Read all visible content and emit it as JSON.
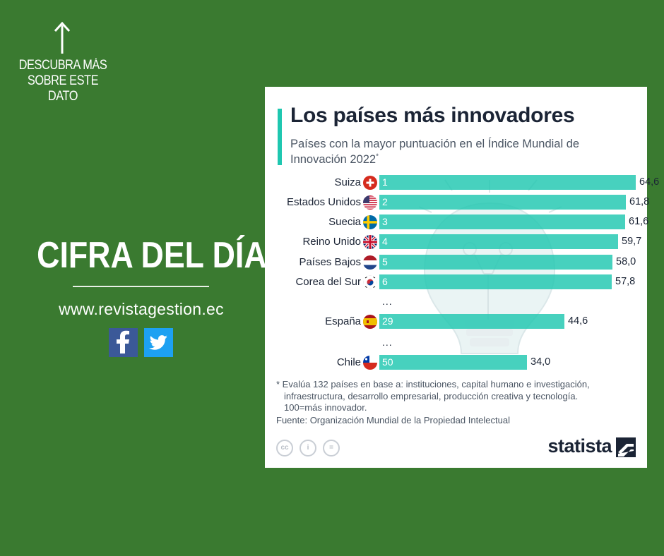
{
  "promo": {
    "lines": [
      "DESCUBRA MÁS",
      "SOBRE ESTE",
      "DATO"
    ],
    "icon": "arrow-up-icon"
  },
  "headline": "CIFRA DEL DÍA",
  "website": "www.revistagestion.ec",
  "social": [
    "facebook-icon",
    "twitter-icon"
  ],
  "colors": {
    "background": "#3a7a30",
    "bar": "#1fc7b0",
    "text_dark": "#1b2435"
  },
  "chart_data": {
    "type": "bar",
    "orientation": "horizontal",
    "title": "Los países más innovadores",
    "subtitle": "Países con la mayor puntuación en el Índice Mundial de Innovación 2022",
    "subtitle_marker": "*",
    "xlim": [
      0,
      70
    ],
    "grid": false,
    "categories": [
      "Suiza",
      "Estados Unidos",
      "Suecia",
      "Reino Unido",
      "Países Bajos",
      "Corea del Sur",
      "España",
      "Chile"
    ],
    "flags": [
      "ch",
      "us",
      "se",
      "gb",
      "nl",
      "kr",
      "es",
      "cl"
    ],
    "ranks": [
      "1",
      "2",
      "3",
      "4",
      "5",
      "6",
      "29",
      "50"
    ],
    "values": [
      64.6,
      61.8,
      61.6,
      59.7,
      58.0,
      57.8,
      44.6,
      34.0
    ],
    "value_labels": [
      "64,6",
      "61,8",
      "61,6",
      "59,7",
      "58,0",
      "57,8",
      "44,6",
      "34,0"
    ],
    "ellipsis": "...",
    "footnote": [
      "* Evalúa 132 países en base a: instituciones, capital humano e investigación,",
      "infraestructura, desarrollo empresarial, producción creativa y tecnología.",
      "100=más innovador."
    ],
    "source": "Fuente: Organización Mundial de la Propiedad Intelectual",
    "brand": "statista"
  }
}
